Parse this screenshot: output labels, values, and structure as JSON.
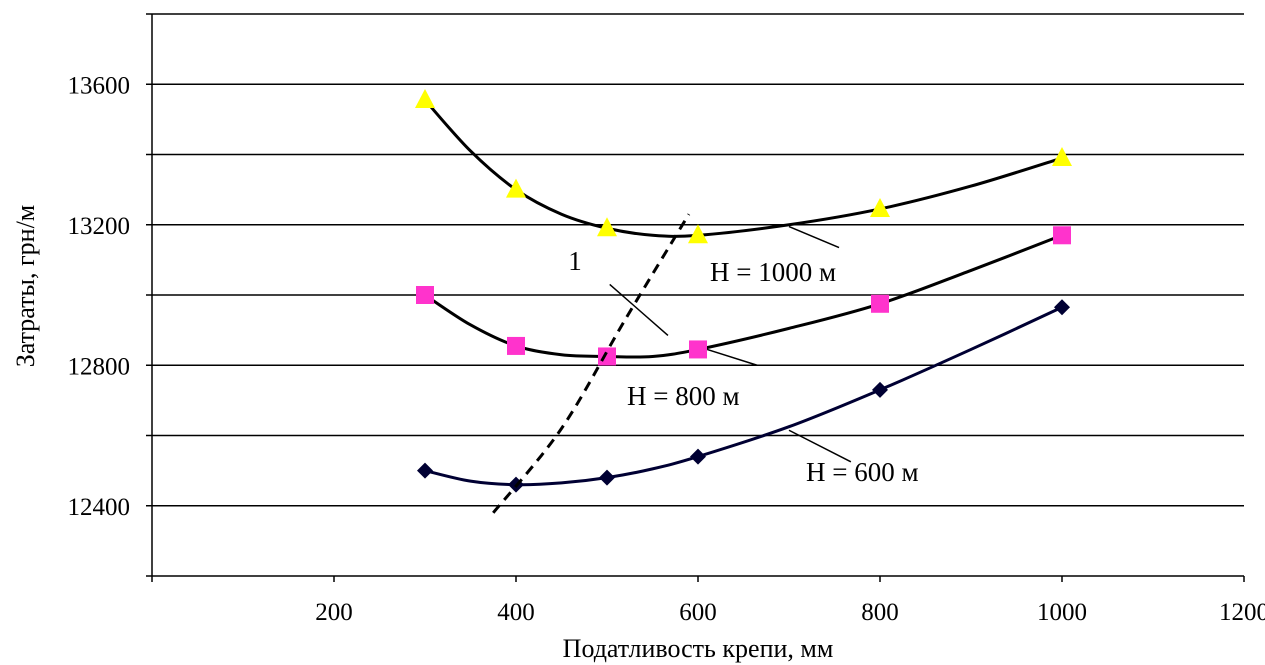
{
  "chart_data": {
    "type": "line",
    "title": "",
    "xlabel": "Податливость крепи, мм",
    "ylabel": "Затраты, грн/м",
    "xlim": [
      0,
      1200
    ],
    "ylim": [
      12200,
      13800
    ],
    "x_ticks": [
      "200",
      "400",
      "600",
      "800",
      "1000",
      "1200"
    ],
    "y_ticks": [
      "12400",
      "12800",
      "13200",
      "13600"
    ],
    "grid": "horizontal",
    "legend": "none",
    "series": [
      {
        "name": "Н = 1000 м",
        "marker": "triangle",
        "marker_color": "#ffff00",
        "line_color": "#000000",
        "x": [
          300,
          400,
          500,
          600,
          800,
          1000
        ],
        "y": [
          13555,
          13300,
          13190,
          13170,
          13245,
          13390
        ],
        "curve": [
          [
            300,
            13555
          ],
          [
            350,
            13410
          ],
          [
            400,
            13300
          ],
          [
            450,
            13230
          ],
          [
            500,
            13190
          ],
          [
            550,
            13170
          ],
          [
            600,
            13170
          ],
          [
            700,
            13200
          ],
          [
            800,
            13245
          ],
          [
            900,
            13310
          ],
          [
            1000,
            13390
          ]
        ]
      },
      {
        "name": "Н = 800 м",
        "marker": "square",
        "marker_color": "#ff33cc",
        "line_color": "#000000",
        "x": [
          300,
          400,
          500,
          600,
          800,
          1000
        ],
        "y": [
          13000,
          12855,
          12825,
          12845,
          12975,
          13170
        ],
        "curve": [
          [
            300,
            13000
          ],
          [
            350,
            12915
          ],
          [
            400,
            12855
          ],
          [
            450,
            12830
          ],
          [
            500,
            12825
          ],
          [
            550,
            12825
          ],
          [
            600,
            12845
          ],
          [
            700,
            12905
          ],
          [
            800,
            12975
          ],
          [
            900,
            13070
          ],
          [
            1000,
            13170
          ]
        ]
      },
      {
        "name": "Н = 600 м",
        "marker": "diamond",
        "marker_color": "#000033",
        "line_color": "#000033",
        "x": [
          300,
          400,
          500,
          600,
          800,
          1000
        ],
        "y": [
          12500,
          12460,
          12480,
          12540,
          12730,
          12965
        ],
        "curve": [
          [
            300,
            12500
          ],
          [
            350,
            12470
          ],
          [
            400,
            12460
          ],
          [
            450,
            12465
          ],
          [
            500,
            12480
          ],
          [
            550,
            12505
          ],
          [
            600,
            12540
          ],
          [
            700,
            12625
          ],
          [
            800,
            12730
          ],
          [
            900,
            12845
          ],
          [
            1000,
            12965
          ]
        ]
      }
    ],
    "optimum_line": {
      "label": "1",
      "style": "dashed",
      "points": [
        [
          375,
          12380
        ],
        [
          450,
          12620
        ],
        [
          520,
          12930
        ],
        [
          590,
          13230
        ]
      ]
    },
    "annotations": [
      {
        "text": "Н = 1000 м",
        "target_series": 0
      },
      {
        "text": "Н = 800 м",
        "target_series": 1
      },
      {
        "text": "Н = 600 м",
        "target_series": 2
      },
      {
        "text": "1",
        "target": "optimum_line"
      }
    ]
  }
}
